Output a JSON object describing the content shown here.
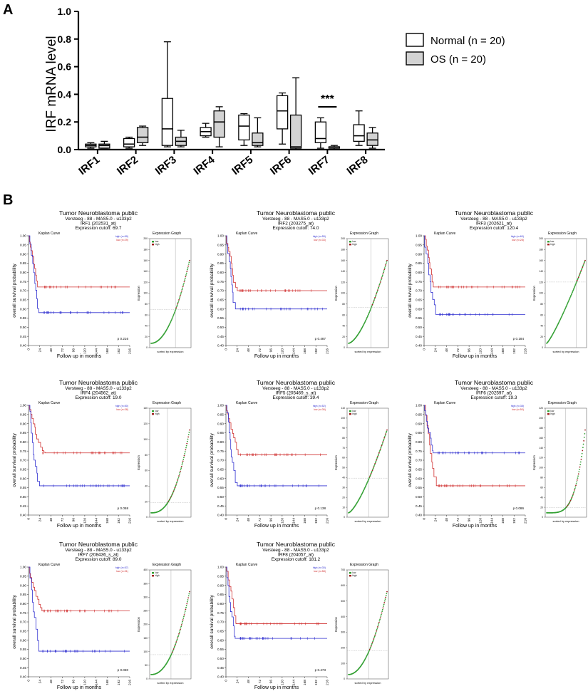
{
  "panel_a": {
    "label": "A",
    "chart_data": {
      "type": "box",
      "title": "",
      "xlabel": "",
      "ylabel": "IRF mRNA level",
      "ylim": [
        0,
        1.0
      ],
      "yticks": [
        "0.0",
        "0.2",
        "0.4",
        "0.6",
        "0.8",
        "1.0"
      ],
      "categories": [
        "IRF1",
        "IRF2",
        "IRF3",
        "IRF4",
        "IRF5",
        "IRF6",
        "IRF7",
        "IRF8"
      ],
      "series": [
        {
          "name": "Normal (n = 20)",
          "color": "#ffffff",
          "boxes": [
            {
              "min": 0.01,
              "q1": 0.02,
              "median": 0.03,
              "q3": 0.04,
              "max": 0.05
            },
            {
              "min": 0.01,
              "q1": 0.02,
              "median": 0.04,
              "q3": 0.08,
              "max": 0.09
            },
            {
              "min": 0.02,
              "q1": 0.03,
              "median": 0.15,
              "q3": 0.37,
              "max": 0.78
            },
            {
              "min": 0.09,
              "q1": 0.1,
              "median": 0.13,
              "q3": 0.16,
              "max": 0.19
            },
            {
              "min": 0.03,
              "q1": 0.07,
              "median": 0.17,
              "q3": 0.25,
              "max": 0.26
            },
            {
              "min": 0.04,
              "q1": 0.15,
              "median": 0.28,
              "q3": 0.39,
              "max": 0.41
            },
            {
              "min": 0.01,
              "q1": 0.05,
              "median": 0.08,
              "q3": 0.2,
              "max": 0.23
            },
            {
              "min": 0.03,
              "q1": 0.06,
              "median": 0.1,
              "q3": 0.18,
              "max": 0.28
            }
          ]
        },
        {
          "name": "OS (n = 20)",
          "color": "#d3d3d3",
          "boxes": [
            {
              "min": 0.01,
              "q1": 0.01,
              "median": 0.03,
              "q3": 0.04,
              "max": 0.06
            },
            {
              "min": 0.03,
              "q1": 0.05,
              "median": 0.09,
              "q3": 0.16,
              "max": 0.17
            },
            {
              "min": 0.02,
              "q1": 0.03,
              "median": 0.06,
              "q3": 0.09,
              "max": 0.14
            },
            {
              "min": 0.02,
              "q1": 0.09,
              "median": 0.2,
              "q3": 0.28,
              "max": 0.31
            },
            {
              "min": 0.02,
              "q1": 0.03,
              "median": 0.05,
              "q3": 0.12,
              "max": 0.23
            },
            {
              "min": 0.0,
              "q1": 0.01,
              "median": 0.02,
              "q3": 0.25,
              "max": 0.52
            },
            {
              "min": 0.0,
              "q1": 0.01,
              "median": 0.02,
              "q3": 0.02,
              "max": 0.03
            },
            {
              "min": 0.01,
              "q1": 0.03,
              "median": 0.07,
              "q3": 0.12,
              "max": 0.16
            }
          ]
        }
      ],
      "annotations": [
        {
          "category": "IRF7",
          "text": "***"
        }
      ],
      "legend_position": "top-right"
    }
  },
  "panel_b": {
    "label": "B",
    "common": {
      "header_title": "Tumor Neuroblastoma public",
      "header_dataset": "Versteeg - 88 - MAS5.0 - u133p2",
      "km_caption": "Kaplan Curve",
      "km_ylabel": "overall survival probability",
      "km_xlabel": "Follow up in months",
      "km_yticks": [
        "0.40",
        "0.45",
        "0.50",
        "0.55",
        "0.60",
        "0.65",
        "0.70",
        "0.75",
        "0.80",
        "0.85",
        "0.90",
        "0.95",
        "1.00"
      ],
      "km_xticks": [
        "0",
        "24",
        "48",
        "72",
        "96",
        "120",
        "144",
        "168",
        "192",
        "216"
      ],
      "km_ylim": [
        0.4,
        1.0
      ],
      "km_xlim": [
        0,
        216
      ],
      "expr_caption": "Expression Graph",
      "expr_ylabel": "Expression",
      "expr_xlabel": "sorted by expression",
      "legend_high": "high",
      "legend_low": "low",
      "colors": {
        "high": "#d03030",
        "low": "#3030d0",
        "green": "#33a033",
        "darkred": "#a02020"
      }
    },
    "panels": [
      {
        "gene_line": "IRF1 (202531_at)",
        "cutoff_text": "Expression cutoff: 69.7",
        "p_value": "p 0.216",
        "high_plateau": 0.72,
        "low_plateau": 0.58,
        "high_label": "high (n=59)",
        "low_label": "low (n=29)",
        "expr_max": 200,
        "expr_cutoff": 69.7,
        "expr_ticks": [
          "0",
          "20",
          "40",
          "60",
          "80",
          "100",
          "120",
          "140",
          "160",
          "180",
          "200"
        ],
        "expr_shape": 2
      },
      {
        "gene_line": "IRF2 (203275_at)",
        "cutoff_text": "Expression cutoff: 74.0",
        "p_value": "p 0.487",
        "high_plateau": 0.7,
        "low_plateau": 0.6,
        "high_label": "high (n=55)",
        "low_label": "low (n=33)",
        "expr_max": 200,
        "expr_cutoff": 74.0,
        "expr_ticks": [
          "0",
          "20",
          "40",
          "60",
          "80",
          "100",
          "120",
          "140",
          "160",
          "180",
          "200"
        ],
        "expr_shape": 1.6
      },
      {
        "gene_line": "IRF3 (202621_at)",
        "cutoff_text": "Expression cutoff: 120.4",
        "p_value": "p 0.184",
        "high_plateau": 0.72,
        "low_plateau": 0.57,
        "high_label": "high (n=60)",
        "low_label": "low (n=28)",
        "expr_max": 200,
        "expr_cutoff": 120.4,
        "expr_ticks": [
          "0",
          "20",
          "40",
          "60",
          "80",
          "100",
          "120",
          "140",
          "160",
          "180",
          "200"
        ],
        "expr_shape": 1.2
      },
      {
        "gene_line": "IRF4 (204562_at)",
        "cutoff_text": "Expression cutoff: 19.0",
        "p_value": "p 0.058",
        "high_plateau": 0.74,
        "low_plateau": 0.56,
        "high_label": "high (n=50)",
        "low_label": "low (n=38)",
        "expr_max": 140,
        "expr_cutoff": 19.0,
        "expr_ticks": [
          "0",
          "20",
          "40",
          "60",
          "80",
          "100",
          "120",
          "140"
        ],
        "expr_shape": 2.5
      },
      {
        "gene_line": "IRF5 (205469_s_at)",
        "cutoff_text": "Expression cutoff: 39.4",
        "p_value": "p 0.138",
        "high_plateau": 0.73,
        "low_plateau": 0.56,
        "high_label": "high (n=52)",
        "low_label": "low (n=36)",
        "expr_max": 110,
        "expr_cutoff": 39.4,
        "expr_ticks": [
          "0",
          "10",
          "20",
          "30",
          "40",
          "50",
          "60",
          "70",
          "80",
          "90",
          "100",
          "110"
        ],
        "expr_shape": 1.4
      },
      {
        "gene_line": "IRF6 (202597_at)",
        "cutoff_text": "Expression cutoff: 19.3",
        "p_value": "p 0.086",
        "high_plateau": 0.56,
        "low_plateau": 0.74,
        "high_label": "high (n=38)",
        "low_label": "low (n=50)",
        "expr_max": 220,
        "expr_cutoff": 19.3,
        "expr_ticks": [
          "0",
          "20",
          "40",
          "60",
          "80",
          "100",
          "120",
          "140",
          "160",
          "180",
          "200",
          "220"
        ],
        "expr_shape": 4
      },
      {
        "gene_line": "IRF7 (208436_s_at)",
        "cutoff_text": "Expression cutoff: 89.0",
        "p_value": "p 0.030",
        "high_plateau": 0.76,
        "low_plateau": 0.54,
        "high_label": "high (n=57)",
        "low_label": "low (n=31)",
        "expr_max": 400,
        "expr_cutoff": 89.0,
        "expr_ticks": [
          "0",
          "50",
          "100",
          "150",
          "200",
          "250",
          "300",
          "350",
          "400"
        ],
        "expr_shape": 2.2
      },
      {
        "gene_line": "IRF8 (204057_at)",
        "cutoff_text": "Expression cutoff: 181.2",
        "p_value": "p 0.473",
        "high_plateau": 0.69,
        "low_plateau": 0.61,
        "high_label": "high (n=30)",
        "low_label": "low (n=58)",
        "expr_max": 700,
        "expr_cutoff": 181.2,
        "expr_ticks": [
          "0",
          "100",
          "200",
          "300",
          "400",
          "500",
          "600",
          "700"
        ],
        "expr_shape": 2
      }
    ]
  }
}
